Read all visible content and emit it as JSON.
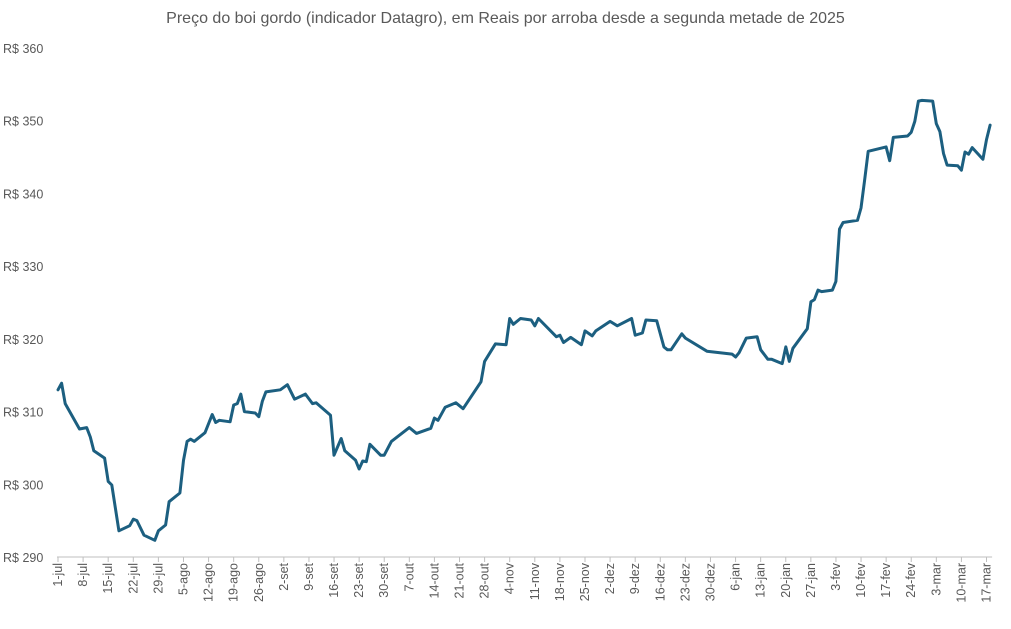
{
  "chart_data": {
    "type": "line",
    "title": "Preço do boi gordo (indicador Datagro), em Reais por arroba desde a segunda metade de 2025",
    "xlabel": "",
    "ylabel": "",
    "ylim": [
      290,
      360
    ],
    "xlim": [
      "2025-07-01",
      "2026-03-18"
    ],
    "grid": false,
    "legend": "none",
    "line_color": "#1c5f80",
    "y_ticks": [
      290,
      300,
      310,
      320,
      330,
      340,
      350,
      360
    ],
    "y_tick_labels": [
      "R$ 290",
      "R$ 300",
      "R$ 310",
      "R$ 320",
      "R$ 330",
      "R$ 340",
      "R$ 350",
      "R$ 360"
    ],
    "x_ticks": [
      "2025-07-01",
      "2025-07-08",
      "2025-07-15",
      "2025-07-22",
      "2025-07-29",
      "2025-08-05",
      "2025-08-12",
      "2025-08-19",
      "2025-08-26",
      "2025-09-02",
      "2025-09-09",
      "2025-09-16",
      "2025-09-23",
      "2025-09-30",
      "2025-10-07",
      "2025-10-14",
      "2025-10-21",
      "2025-10-28",
      "2025-11-04",
      "2025-11-11",
      "2025-11-18",
      "2025-11-25",
      "2025-12-02",
      "2025-12-09",
      "2025-12-16",
      "2025-12-23",
      "2025-12-30",
      "2026-01-06",
      "2026-01-13",
      "2026-01-20",
      "2026-01-27",
      "2026-02-03",
      "2026-02-10",
      "2026-02-17",
      "2026-02-24",
      "2026-03-03",
      "2026-03-10",
      "2026-03-17"
    ],
    "x_tick_labels": [
      "1-jul",
      "8-jul",
      "15-jul",
      "22-jul",
      "29-jul",
      "5-ago",
      "12-ago",
      "19-ago",
      "26-ago",
      "2-set",
      "9-set",
      "16-set",
      "23-set",
      "30-set",
      "7-out",
      "14-out",
      "21-out",
      "28-out",
      "4-nov",
      "11-nov",
      "18-nov",
      "25-nov",
      "2-dez",
      "9-dez",
      "16-dez",
      "23-dez",
      "30-dez",
      "6-jan",
      "13-jan",
      "20-jan",
      "27-jan",
      "3-fev",
      "10-fev",
      "17-fev",
      "24-fev",
      "3-mar",
      "10-mar",
      "17-mar"
    ],
    "series": [
      {
        "x": [
          "2025-07-01",
          "2025-07-02",
          "2025-07-03",
          "2025-07-07",
          "2025-07-09",
          "2025-07-10",
          "2025-07-11",
          "2025-07-14",
          "2025-07-15",
          "2025-07-16",
          "2025-07-18",
          "2025-07-21",
          "2025-07-22",
          "2025-07-23",
          "2025-07-25",
          "2025-07-28",
          "2025-07-29",
          "2025-07-31",
          "2025-08-01",
          "2025-08-04",
          "2025-08-05",
          "2025-08-06",
          "2025-08-07",
          "2025-08-08",
          "2025-08-11",
          "2025-08-13",
          "2025-08-14",
          "2025-08-15",
          "2025-08-18",
          "2025-08-19",
          "2025-08-20",
          "2025-08-21",
          "2025-08-22",
          "2025-08-25",
          "2025-08-26",
          "2025-08-27",
          "2025-08-28",
          "2025-09-01",
          "2025-09-03",
          "2025-09-05",
          "2025-09-08",
          "2025-09-10",
          "2025-09-11",
          "2025-09-15",
          "2025-09-16",
          "2025-09-18",
          "2025-09-19",
          "2025-09-22",
          "2025-09-23",
          "2025-09-24",
          "2025-09-25",
          "2025-09-26",
          "2025-09-29",
          "2025-09-30",
          "2025-10-02",
          "2025-10-07",
          "2025-10-09",
          "2025-10-13",
          "2025-10-14",
          "2025-10-15",
          "2025-10-17",
          "2025-10-20",
          "2025-10-22",
          "2025-10-27",
          "2025-10-28",
          "2025-10-31",
          "2025-11-03",
          "2025-11-04",
          "2025-11-05",
          "2025-11-07",
          "2025-11-10",
          "2025-11-11",
          "2025-11-12",
          "2025-11-17",
          "2025-11-18",
          "2025-11-19",
          "2025-11-21",
          "2025-11-24",
          "2025-11-25",
          "2025-11-27",
          "2025-11-28",
          "2025-12-02",
          "2025-12-04",
          "2025-12-08",
          "2025-12-09",
          "2025-12-11",
          "2025-12-12",
          "2025-12-15",
          "2025-12-17",
          "2025-12-18",
          "2025-12-19",
          "2025-12-22",
          "2025-12-23",
          "2025-12-29",
          "2026-01-05",
          "2026-01-06",
          "2026-01-07",
          "2026-01-09",
          "2026-01-12",
          "2026-01-13",
          "2026-01-15",
          "2026-01-16",
          "2026-01-19",
          "2026-01-20",
          "2026-01-21",
          "2026-01-22",
          "2026-01-26",
          "2026-01-27",
          "2026-01-28",
          "2026-01-29",
          "2026-01-30",
          "2026-02-02",
          "2026-02-03",
          "2026-02-04",
          "2026-02-05",
          "2026-02-09",
          "2026-02-10",
          "2026-02-11",
          "2026-02-12",
          "2026-02-17",
          "2026-02-18",
          "2026-02-19",
          "2026-02-23",
          "2026-02-24",
          "2026-02-25",
          "2026-02-26",
          "2026-02-27",
          "2026-03-02",
          "2026-03-03",
          "2026-03-04",
          "2026-03-05",
          "2026-03-06",
          "2026-03-09",
          "2026-03-10",
          "2026-03-11",
          "2026-03-12",
          "2026-03-13",
          "2026-03-16",
          "2026-03-17",
          "2026-03-18"
        ],
        "y": [
          313.0,
          313.9,
          311.1,
          307.6,
          307.8,
          306.5,
          304.6,
          303.6,
          300.4,
          299.9,
          293.6,
          294.3,
          295.2,
          295.0,
          293.0,
          292.3,
          293.6,
          294.4,
          297.6,
          298.8,
          303.3,
          305.9,
          306.2,
          305.9,
          307.1,
          309.6,
          308.5,
          308.8,
          308.6,
          310.9,
          311.1,
          312.4,
          310.0,
          309.8,
          309.3,
          311.4,
          312.7,
          313.0,
          313.7,
          311.7,
          312.4,
          311.1,
          311.2,
          309.5,
          304.0,
          306.3,
          304.6,
          303.3,
          302.1,
          303.2,
          303.1,
          305.5,
          304.0,
          304.0,
          305.9,
          307.8,
          307.0,
          307.7,
          309.1,
          308.8,
          310.6,
          311.2,
          310.4,
          314.1,
          316.9,
          319.3,
          319.2,
          322.8,
          322.0,
          322.8,
          322.6,
          321.8,
          322.8,
          320.3,
          320.5,
          319.5,
          320.2,
          319.2,
          321.1,
          320.4,
          321.1,
          322.4,
          321.8,
          322.8,
          320.5,
          320.8,
          322.6,
          322.5,
          318.9,
          318.5,
          318.5,
          320.7,
          320.1,
          318.3,
          317.9,
          317.5,
          318.1,
          320.1,
          320.3,
          318.5,
          317.2,
          317.2,
          316.6,
          318.9,
          316.9,
          318.7,
          321.4,
          325.1,
          325.4,
          326.7,
          326.5,
          326.7,
          327.9,
          335.1,
          336.0,
          336.3,
          338.0,
          341.8,
          345.8,
          346.4,
          344.5,
          347.7,
          347.9,
          348.4,
          349.9,
          352.7,
          352.8,
          352.7,
          349.6,
          348.5,
          345.5,
          343.9,
          343.8,
          343.2,
          345.7,
          345.4,
          346.3,
          344.7,
          347.4,
          349.4
        ]
      }
    ]
  }
}
